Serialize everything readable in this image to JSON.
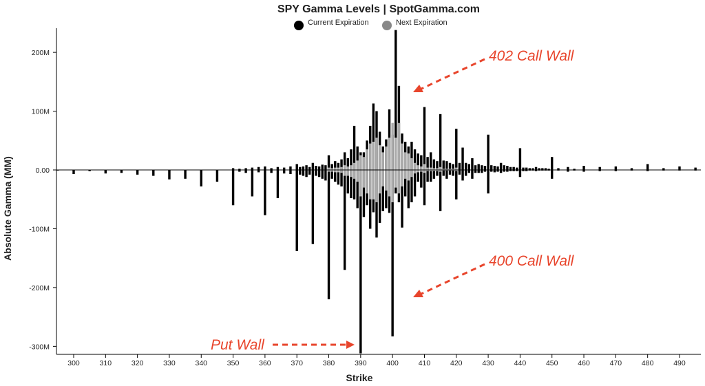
{
  "chart_data": {
    "type": "bar",
    "title": "SPY Gamma Levels | SpotGamma.com",
    "xlabel": "Strike",
    "ylabel": "Absolute Gamma (MM)",
    "xlim": [
      295,
      495
    ],
    "ylim": [
      -312,
      240
    ],
    "x_ticks": [
      300,
      310,
      320,
      330,
      340,
      350,
      360,
      370,
      380,
      390,
      400,
      410,
      420,
      430,
      440,
      450,
      460,
      470,
      480,
      490
    ],
    "y_ticks": [
      {
        "value": 200,
        "label": "200M"
      },
      {
        "value": 100,
        "label": "100M"
      },
      {
        "value": 0,
        "label": "0.00"
      },
      {
        "value": -100,
        "label": "-100M"
      },
      {
        "value": -200,
        "label": "-200M"
      },
      {
        "value": -300,
        "label": "-300M"
      }
    ],
    "legend": {
      "position": "top-center",
      "items": [
        {
          "label": "Current Expiration",
          "color": "#000000"
        },
        {
          "label": "Next Expiration",
          "color": "#888888"
        }
      ]
    },
    "colors": {
      "current": "#000000",
      "next": "#aaaaaa",
      "annotation": "#e8452c"
    },
    "series": [
      {
        "name": "Current Expiration",
        "points": [
          [
            295,
            0,
            -1
          ],
          [
            300,
            0,
            -7
          ],
          [
            305,
            0,
            -2
          ],
          [
            310,
            0,
            -6
          ],
          [
            315,
            0,
            -5
          ],
          [
            320,
            0,
            -8
          ],
          [
            325,
            0,
            -10
          ],
          [
            330,
            0,
            -16
          ],
          [
            335,
            0,
            -15
          ],
          [
            340,
            0,
            -28
          ],
          [
            345,
            0,
            -20
          ],
          [
            350,
            3,
            -60
          ],
          [
            352,
            2,
            -3
          ],
          [
            354,
            3,
            -5
          ],
          [
            356,
            4,
            -45
          ],
          [
            358,
            5,
            -4
          ],
          [
            360,
            6,
            -77
          ],
          [
            362,
            3,
            -5
          ],
          [
            364,
            5,
            -48
          ],
          [
            366,
            4,
            -6
          ],
          [
            368,
            6,
            -7
          ],
          [
            370,
            10,
            -138
          ],
          [
            371,
            5,
            -8
          ],
          [
            372,
            6,
            -10
          ],
          [
            373,
            8,
            -12
          ],
          [
            374,
            5,
            -8
          ],
          [
            375,
            12,
            -126
          ],
          [
            376,
            7,
            -10
          ],
          [
            377,
            6,
            -12
          ],
          [
            378,
            9,
            -15
          ],
          [
            379,
            8,
            -18
          ],
          [
            380,
            25,
            -220
          ],
          [
            381,
            10,
            -15
          ],
          [
            382,
            15,
            -20
          ],
          [
            383,
            12,
            -25
          ],
          [
            384,
            18,
            -28
          ],
          [
            385,
            30,
            -170
          ],
          [
            386,
            20,
            -40
          ],
          [
            387,
            35,
            -48
          ],
          [
            388,
            75,
            -50
          ],
          [
            389,
            40,
            -65
          ],
          [
            390,
            30,
            -312
          ],
          [
            391,
            30,
            -80
          ],
          [
            392,
            50,
            -60
          ],
          [
            393,
            75,
            -100
          ],
          [
            394,
            113,
            -72
          ],
          [
            395,
            100,
            -115
          ],
          [
            396,
            65,
            -90
          ],
          [
            397,
            40,
            -70
          ],
          [
            398,
            52,
            -65
          ],
          [
            399,
            103,
            -73
          ],
          [
            400,
            60,
            -283
          ],
          [
            401,
            238,
            -40
          ],
          [
            402,
            143,
            -55
          ],
          [
            403,
            62,
            -98
          ],
          [
            404,
            48,
            -45
          ],
          [
            405,
            40,
            -65
          ],
          [
            406,
            48,
            -55
          ],
          [
            407,
            35,
            -45
          ],
          [
            408,
            28,
            -20
          ],
          [
            409,
            25,
            -30
          ],
          [
            410,
            107,
            -60
          ],
          [
            411,
            22,
            -20
          ],
          [
            412,
            30,
            -20
          ],
          [
            413,
            18,
            -15
          ],
          [
            414,
            15,
            -10
          ],
          [
            415,
            95,
            -70
          ],
          [
            416,
            16,
            -10
          ],
          [
            417,
            15,
            -15
          ],
          [
            418,
            12,
            -8
          ],
          [
            419,
            10,
            -10
          ],
          [
            420,
            70,
            -50
          ],
          [
            421,
            12,
            -8
          ],
          [
            422,
            38,
            -18
          ],
          [
            423,
            12,
            -10
          ],
          [
            424,
            10,
            -5
          ],
          [
            425,
            20,
            -15
          ],
          [
            426,
            8,
            -5
          ],
          [
            427,
            10,
            -5
          ],
          [
            428,
            8,
            -5
          ],
          [
            429,
            7,
            -3
          ],
          [
            430,
            60,
            -40
          ],
          [
            431,
            8,
            -3
          ],
          [
            432,
            7,
            -4
          ],
          [
            433,
            6,
            -3
          ],
          [
            434,
            12,
            -5
          ],
          [
            435,
            8,
            -3
          ],
          [
            436,
            7,
            -3
          ],
          [
            437,
            5,
            -2
          ],
          [
            438,
            5,
            -2
          ],
          [
            439,
            4,
            -2
          ],
          [
            440,
            37,
            -12
          ],
          [
            441,
            4,
            -2
          ],
          [
            442,
            4,
            -2
          ],
          [
            443,
            3,
            -1
          ],
          [
            444,
            3,
            -1
          ],
          [
            445,
            5,
            -2
          ],
          [
            446,
            3,
            -1
          ],
          [
            447,
            3,
            -1
          ],
          [
            448,
            3,
            -1
          ],
          [
            449,
            2,
            -1
          ],
          [
            450,
            22,
            -15
          ],
          [
            452,
            3,
            -1
          ],
          [
            455,
            5,
            -3
          ],
          [
            457,
            2,
            -1
          ],
          [
            460,
            7,
            -3
          ],
          [
            465,
            5,
            -2
          ],
          [
            470,
            6,
            -2
          ],
          [
            475,
            3,
            -1
          ],
          [
            480,
            10,
            -2
          ],
          [
            485,
            3,
            -1
          ],
          [
            490,
            6,
            -1
          ],
          [
            495,
            4,
            -1
          ]
        ]
      },
      {
        "name": "Next Expiration",
        "points": [
          [
            380,
            4,
            -3
          ],
          [
            381,
            3,
            -3
          ],
          [
            382,
            4,
            -4
          ],
          [
            383,
            4,
            -4
          ],
          [
            384,
            5,
            -5
          ],
          [
            385,
            8,
            -10
          ],
          [
            386,
            6,
            -10
          ],
          [
            387,
            8,
            -12
          ],
          [
            388,
            12,
            -15
          ],
          [
            389,
            16,
            -20
          ],
          [
            390,
            25,
            -45
          ],
          [
            391,
            22,
            -30
          ],
          [
            392,
            35,
            -40
          ],
          [
            393,
            45,
            -50
          ],
          [
            394,
            48,
            -50
          ],
          [
            395,
            55,
            -55
          ],
          [
            396,
            42,
            -40
          ],
          [
            397,
            30,
            -28
          ],
          [
            398,
            40,
            -35
          ],
          [
            399,
            55,
            -45
          ],
          [
            400,
            80,
            -55
          ],
          [
            401,
            55,
            -30
          ],
          [
            402,
            80,
            -40
          ],
          [
            403,
            45,
            -28
          ],
          [
            404,
            30,
            -15
          ],
          [
            405,
            28,
            -18
          ],
          [
            406,
            20,
            -12
          ],
          [
            407,
            12,
            -6
          ],
          [
            408,
            8,
            -4
          ],
          [
            409,
            6,
            -3
          ],
          [
            410,
            10,
            -5
          ],
          [
            411,
            4,
            -2
          ],
          [
            412,
            4,
            -2
          ],
          [
            413,
            3,
            -2
          ],
          [
            414,
            3,
            -2
          ],
          [
            415,
            5,
            -3
          ],
          [
            416,
            2,
            -1
          ],
          [
            417,
            2,
            -1
          ],
          [
            418,
            2,
            -1
          ],
          [
            419,
            2,
            -1
          ],
          [
            420,
            4,
            -2
          ]
        ]
      }
    ],
    "annotations": [
      {
        "text": "402 Call Wall"
      },
      {
        "text": "400 Call Wall"
      },
      {
        "text": "Put Wall"
      }
    ]
  }
}
